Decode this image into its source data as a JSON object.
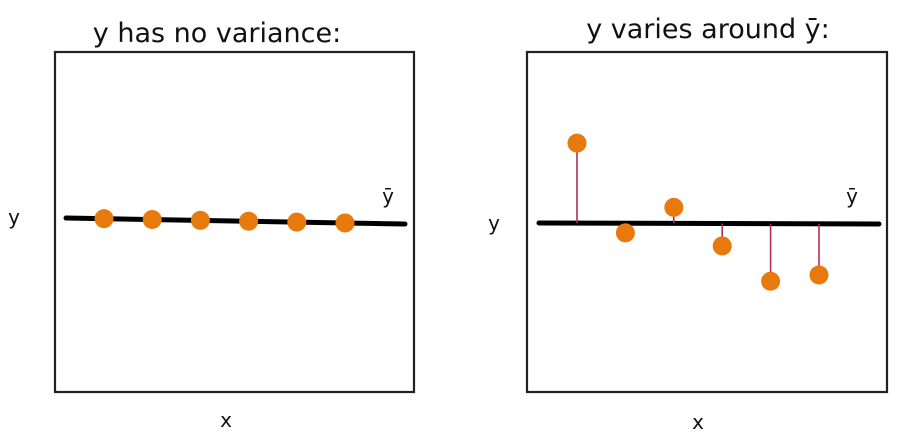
{
  "panels": [
    {
      "title": "y has no variance:",
      "xlabel": "x",
      "ylabel": "y",
      "mean_label": "ȳ",
      "mean": 0,
      "ylim": [
        -5,
        5
      ],
      "points": [
        {
          "x": 1,
          "y": 0
        },
        {
          "x": 2,
          "y": 0
        },
        {
          "x": 3,
          "y": 0
        },
        {
          "x": 4,
          "y": 0
        },
        {
          "x": 5,
          "y": 0
        },
        {
          "x": 6,
          "y": 0
        }
      ],
      "show_residuals": false
    },
    {
      "title": "y varies around ȳ:",
      "xlabel": "x",
      "ylabel": "y",
      "mean_label": "ȳ",
      "mean": 0,
      "ylim": [
        -5,
        5
      ],
      "points": [
        {
          "x": 1,
          "y": 2.5
        },
        {
          "x": 2,
          "y": -0.3
        },
        {
          "x": 3,
          "y": 0.5
        },
        {
          "x": 4,
          "y": -0.7
        },
        {
          "x": 5,
          "y": -1.8
        },
        {
          "x": 6,
          "y": -1.6
        }
      ],
      "show_residuals": true
    }
  ],
  "colors": {
    "point": "#e87a0d",
    "mean_line": "#000000",
    "residual": "#b0305c",
    "frame": "#222222"
  }
}
